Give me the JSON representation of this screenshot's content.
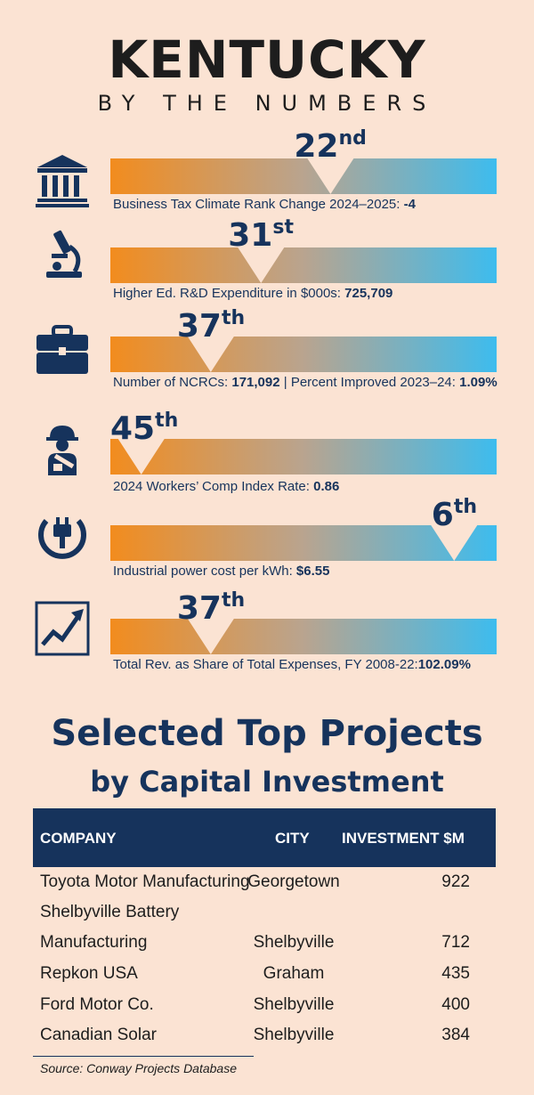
{
  "header": {
    "title": "KENTUCKY",
    "subtitle": "BY THE NUMBERS"
  },
  "colors": {
    "navy": "#16335c",
    "orange": "#f28c1e",
    "blue": "#3dbcee",
    "background": "#fbe3d3"
  },
  "stats": [
    {
      "icon": "government-building-icon",
      "rank_num": "22",
      "rank_suffix": "nd",
      "notch_position": 0.57,
      "caption_label": "Business Tax Climate Rank Change 2024–2025: ",
      "caption_value": "-4"
    },
    {
      "icon": "microscope-icon",
      "rank_num": "31",
      "rank_suffix": "st",
      "notch_position": 0.39,
      "caption_label": "Higher Ed. R&D Expenditure in $000s: ",
      "caption_value": "725,709"
    },
    {
      "icon": "briefcase-icon",
      "rank_num": "37",
      "rank_suffix": "th",
      "notch_position": 0.26,
      "caption_label": "Number of NCRCs: ",
      "caption_value": "171,092",
      "caption_label2": " | Percent Improved 2023–24: ",
      "caption_value2": "1.09%"
    },
    {
      "icon": "injured-worker-icon",
      "rank_num": "45",
      "rank_suffix": "th",
      "notch_position": 0.08,
      "caption_label": "2024 Workers’ Comp Index Rate: ",
      "caption_value": "0.86"
    },
    {
      "icon": "power-plug-icon",
      "rank_num": "6",
      "rank_suffix": "th",
      "notch_position": 0.89,
      "caption_label": "Industrial power cost per kWh: ",
      "caption_value": "$6.55"
    },
    {
      "icon": "trending-chart-icon",
      "rank_num": "37",
      "rank_suffix": "th",
      "notch_position": 0.26,
      "caption_label": "Total Rev. as Share of Total Expenses, FY 2008-22:",
      "caption_value": "102.09%"
    }
  ],
  "projects": {
    "title_line1": "Selected Top Projects",
    "title_line2": "by Capital Investment",
    "columns": [
      "COMPANY",
      "CITY",
      "INVESTMENT $M"
    ],
    "rows": [
      {
        "company": "Toyota Motor Manufacturing",
        "city": "Georgetown",
        "investment": "922"
      },
      {
        "company": "Shelbyville Battery",
        "city": "",
        "investment": ""
      },
      {
        "company": "Manufacturing",
        "city": "Shelbyville",
        "investment": "712"
      },
      {
        "company": "Repkon USA",
        "city": "Graham",
        "investment": "435"
      },
      {
        "company": "Ford Motor Co.",
        "city": "Shelbyville",
        "investment": "400"
      },
      {
        "company": "Canadian Solar",
        "city": "Shelbyville",
        "investment": "384"
      }
    ],
    "source": "Source: Conway Projects Database"
  }
}
